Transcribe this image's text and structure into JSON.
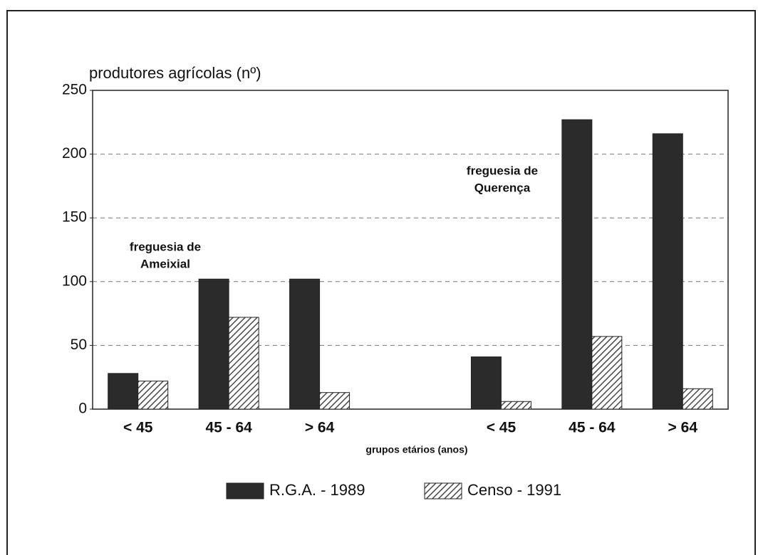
{
  "chart_data": {
    "type": "bar",
    "y_label": "produtores agrícolas (nº)",
    "x_label": "grupos etários (anos)",
    "categories": [
      "< 45",
      "45 - 64",
      "> 64",
      null,
      "< 45",
      "45 - 64",
      "> 64"
    ],
    "series": [
      {
        "name": "R.G.A. - 1989",
        "color": "#2b2b2b",
        "values": [
          28,
          102,
          102,
          null,
          41,
          227,
          216
        ]
      },
      {
        "name": "Censo - 1991",
        "color": "#4a4a4a",
        "pattern": "hatch",
        "values": [
          22,
          72,
          13,
          null,
          6,
          57,
          16
        ]
      }
    ],
    "annotations": [
      {
        "lines": [
          "freguesia de",
          "Ameixial"
        ]
      },
      {
        "lines": [
          "freguesia de",
          "Querença"
        ]
      }
    ],
    "ylim": [
      0,
      250
    ],
    "yticks": [
      0,
      50,
      100,
      150,
      200,
      250
    ],
    "grid": true,
    "legend": "bottom"
  }
}
